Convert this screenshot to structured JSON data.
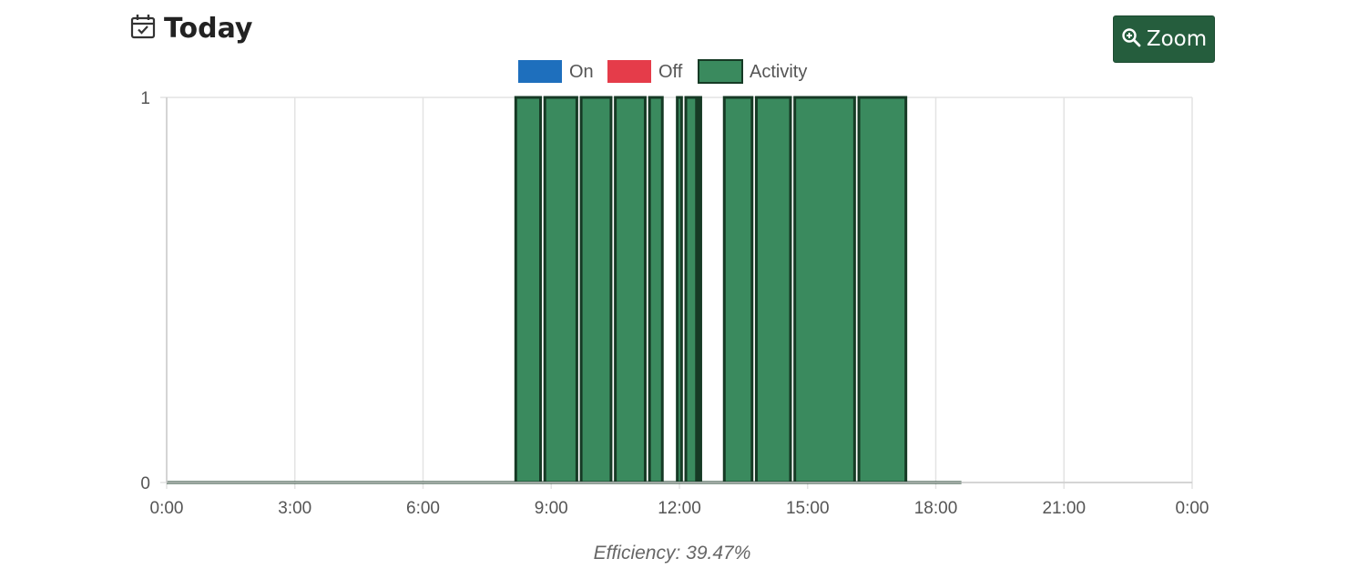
{
  "header": {
    "title": "Today",
    "icon": "calendar-check-icon"
  },
  "toolbar": {
    "zoom_label": "Zoom",
    "zoom_icon": "zoom-in-icon",
    "zoom_color": "#255d3d"
  },
  "footer": {
    "efficiency_text": "Efficiency: 39.47%"
  },
  "chart_data": {
    "type": "area",
    "legend": [
      {
        "name": "On",
        "color": "#1e6fbd"
      },
      {
        "name": "Off",
        "color": "#e53c4a"
      },
      {
        "name": "Activity",
        "color": "#3a8a5e"
      }
    ],
    "legend_position": "top-center",
    "x_ticks": [
      "0:00",
      "3:00",
      "6:00",
      "9:00",
      "12:00",
      "15:00",
      "18:00",
      "21:00",
      "0:00"
    ],
    "xlim_hours": [
      0,
      24
    ],
    "y_ticks": [
      "0",
      "1"
    ],
    "ylim": [
      0,
      1
    ],
    "grid": true,
    "series": [
      {
        "name": "Activity",
        "color": "#3a8a5e",
        "segments": [
          {
            "start": 8.17,
            "end": 8.75
          },
          {
            "start": 8.85,
            "end": 9.6
          },
          {
            "start": 9.7,
            "end": 10.4
          },
          {
            "start": 10.5,
            "end": 11.2
          },
          {
            "start": 11.3,
            "end": 11.6
          },
          {
            "start": 11.95,
            "end": 12.05
          },
          {
            "start": 12.15,
            "end": 12.4
          },
          {
            "start": 12.45,
            "end": 12.5
          },
          {
            "start": 13.05,
            "end": 13.7
          },
          {
            "start": 13.8,
            "end": 14.6
          },
          {
            "start": 14.7,
            "end": 16.1
          },
          {
            "start": 16.2,
            "end": 17.3
          }
        ],
        "baseline_end": 18.6
      }
    ]
  }
}
